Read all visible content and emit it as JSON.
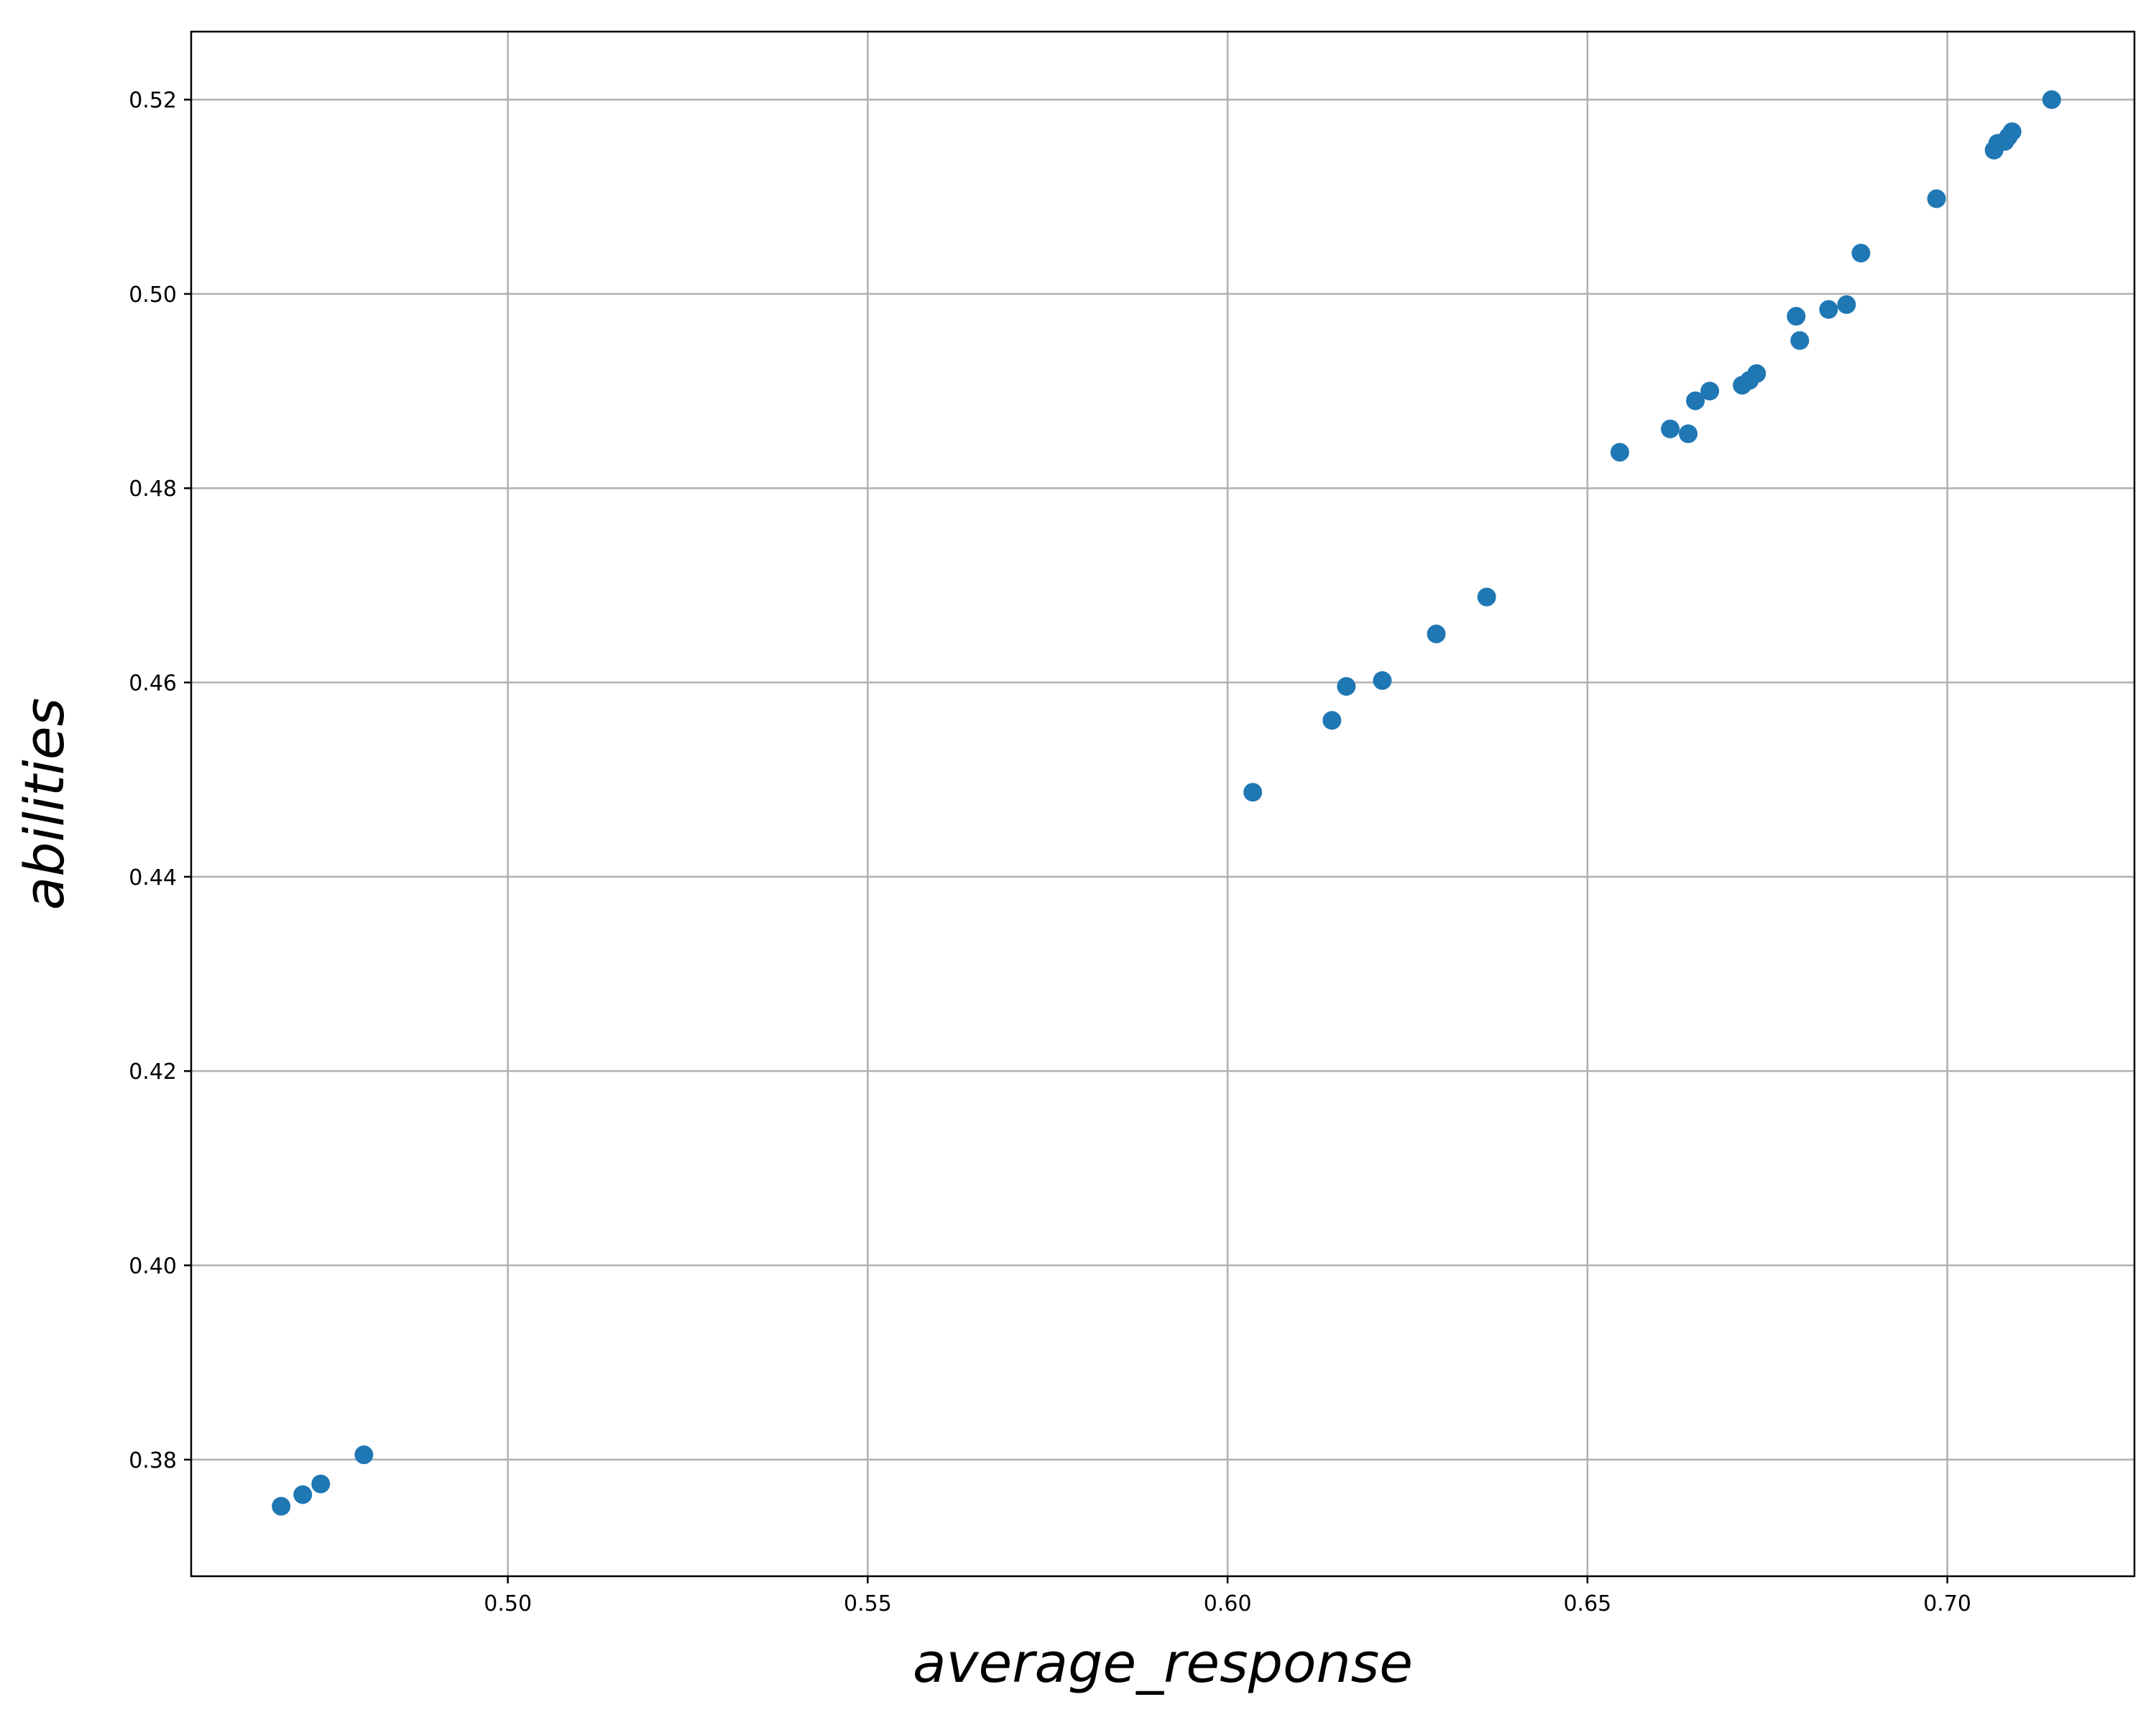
{
  "chart_data": {
    "type": "scatter",
    "title": "",
    "xlabel": "average_response",
    "ylabel": "abilities",
    "xlim": [
      0.456,
      0.726
    ],
    "ylim": [
      0.368,
      0.527
    ],
    "xticks": [
      0.5,
      0.55,
      0.6,
      0.65,
      0.7
    ],
    "xtick_labels": [
      "0.50",
      "0.55",
      "0.60",
      "0.65",
      "0.70"
    ],
    "yticks": [
      0.38,
      0.4,
      0.42,
      0.44,
      0.46,
      0.48,
      0.5,
      0.52
    ],
    "ytick_labels": [
      "0.38",
      "0.40",
      "0.42",
      "0.44",
      "0.46",
      "0.48",
      "0.50",
      "0.52"
    ],
    "grid": true,
    "marker_color": "#1f77b4",
    "points": [
      {
        "x": 0.4685,
        "y": 0.3752
      },
      {
        "x": 0.4715,
        "y": 0.3764
      },
      {
        "x": 0.474,
        "y": 0.3775
      },
      {
        "x": 0.48,
        "y": 0.3805
      },
      {
        "x": 0.6035,
        "y": 0.4487
      },
      {
        "x": 0.6145,
        "y": 0.4561
      },
      {
        "x": 0.6165,
        "y": 0.4596
      },
      {
        "x": 0.6215,
        "y": 0.4602
      },
      {
        "x": 0.629,
        "y": 0.465
      },
      {
        "x": 0.636,
        "y": 0.4688
      },
      {
        "x": 0.6545,
        "y": 0.4837
      },
      {
        "x": 0.6615,
        "y": 0.4861
      },
      {
        "x": 0.664,
        "y": 0.4856
      },
      {
        "x": 0.665,
        "y": 0.489
      },
      {
        "x": 0.667,
        "y": 0.49
      },
      {
        "x": 0.6715,
        "y": 0.4906
      },
      {
        "x": 0.6725,
        "y": 0.4911
      },
      {
        "x": 0.6735,
        "y": 0.4918
      },
      {
        "x": 0.679,
        "y": 0.4977
      },
      {
        "x": 0.6795,
        "y": 0.4952
      },
      {
        "x": 0.6835,
        "y": 0.4984
      },
      {
        "x": 0.686,
        "y": 0.4989
      },
      {
        "x": 0.688,
        "y": 0.5042
      },
      {
        "x": 0.6985,
        "y": 0.5098
      },
      {
        "x": 0.7065,
        "y": 0.5148
      },
      {
        "x": 0.707,
        "y": 0.5155
      },
      {
        "x": 0.708,
        "y": 0.5157
      },
      {
        "x": 0.7085,
        "y": 0.5162
      },
      {
        "x": 0.709,
        "y": 0.5167
      },
      {
        "x": 0.7145,
        "y": 0.52
      }
    ]
  }
}
